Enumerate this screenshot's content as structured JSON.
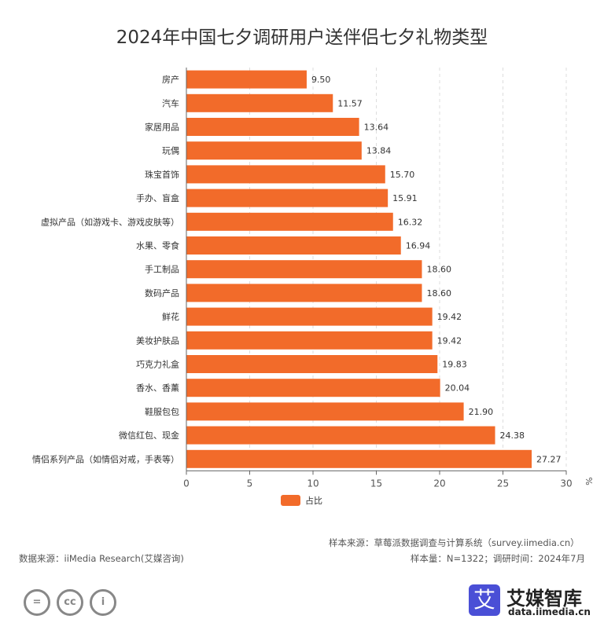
{
  "chart_data": {
    "type": "bar",
    "orientation": "horizontal",
    "title": "2024年中国七夕调研用户送伴侣七夕礼物类型",
    "categories": [
      "房产",
      "汽车",
      "家居用品",
      "玩偶",
      "珠宝首饰",
      "手办、盲盒",
      "虚拟产品（如游戏卡、游戏皮肤等）",
      "水果、零食",
      "手工制品",
      "数码产品",
      "鲜花",
      "美妆护肤品",
      "巧克力礼盒",
      "香水、香薰",
      "鞋服包包",
      "微信红包、现金",
      "情侣系列产品（如情侣对戒，手表等）"
    ],
    "series": [
      {
        "name": "占比",
        "values": [
          9.5,
          11.57,
          13.64,
          13.84,
          15.7,
          15.91,
          16.32,
          16.94,
          18.6,
          18.6,
          19.42,
          19.42,
          19.83,
          20.04,
          21.9,
          24.38,
          27.27
        ],
        "color": "#f26b2a"
      }
    ],
    "xlim": [
      0,
      30
    ],
    "xticks": [
      "0",
      "5",
      "10",
      "15",
      "20",
      "25",
      "30"
    ],
    "xunit": "%",
    "grid": true,
    "legend": "bottom"
  },
  "footer": {
    "source": "数据来源：iiMedia Research(艾媒咨询)",
    "sample_source": "样本来源：草莓派数据调查与计算系统（survey.iimedia.cn）",
    "sample_info": "样本量：N=1322；调研时间：2024年7月",
    "brand": "艾媒智库",
    "brand_logo": "艾",
    "brand_url": "data.iimedia.cn"
  }
}
